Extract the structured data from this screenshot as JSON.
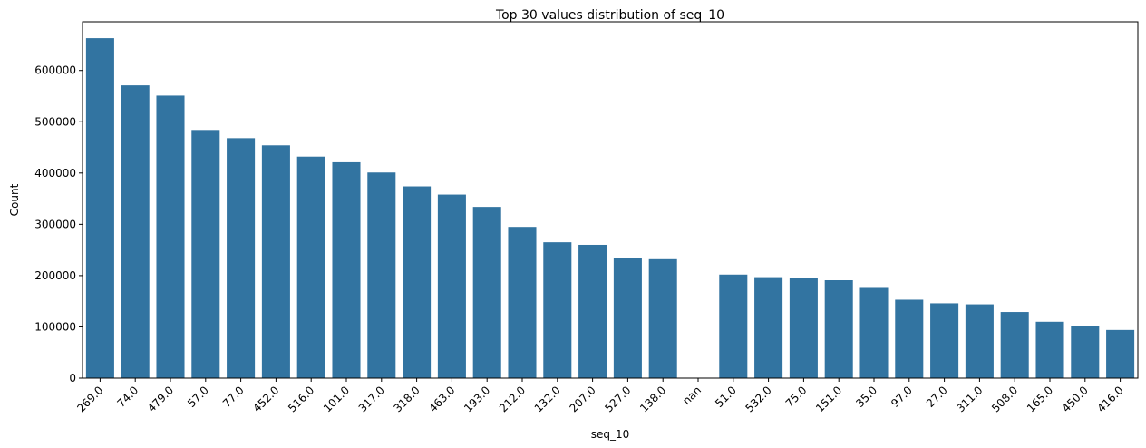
{
  "chart_data": {
    "type": "bar",
    "title": "Top 30 values distribution of seq_10",
    "xlabel": "seq_10",
    "ylabel": "Count",
    "ylim": [
      0,
      695000
    ],
    "yticks": [
      0,
      100000,
      200000,
      300000,
      400000,
      500000,
      600000
    ],
    "grid": false,
    "legend": "none",
    "bar_color": "#3274a1",
    "categories": [
      "269.0",
      "74.0",
      "479.0",
      "57.0",
      "77.0",
      "452.0",
      "516.0",
      "101.0",
      "317.0",
      "318.0",
      "463.0",
      "193.0",
      "212.0",
      "132.0",
      "207.0",
      "527.0",
      "138.0",
      "nan",
      "51.0",
      "532.0",
      "75.0",
      "151.0",
      "35.0",
      "97.0",
      "27.0",
      "311.0",
      "508.0",
      "165.0",
      "450.0",
      "416.0"
    ],
    "values": [
      663000,
      571000,
      551000,
      484000,
      468000,
      454000,
      432000,
      421000,
      401000,
      374000,
      358000,
      334000,
      295000,
      265000,
      260000,
      235000,
      232000,
      0,
      202000,
      197000,
      195000,
      191000,
      176000,
      153000,
      146000,
      144000,
      129000,
      110000,
      101000,
      94000
    ]
  }
}
